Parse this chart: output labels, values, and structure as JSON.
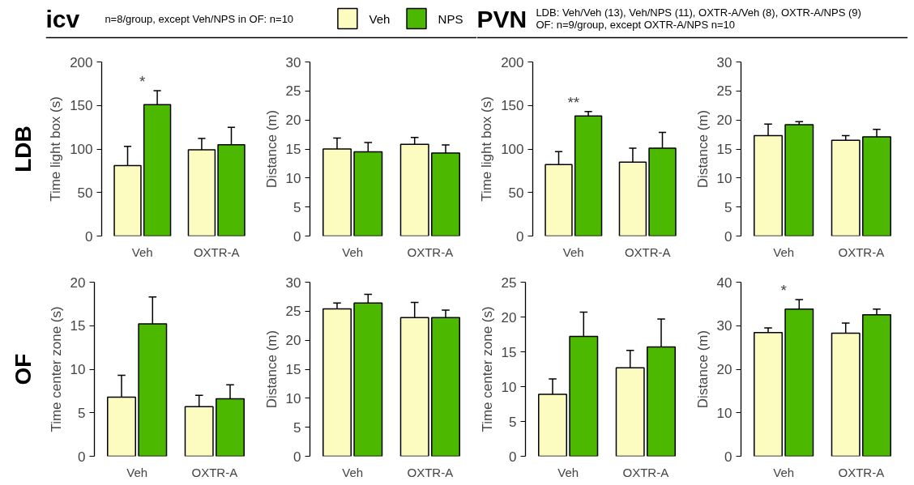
{
  "chart_data": [
    {
      "type": "other",
      "title": "LDB"
    },
    {
      "type": "bar",
      "title": "icv",
      "subtitle": "n=8/group, except Veh/NPS in OF: n=10",
      "annotations": [
        "*"
      ],
      "ylabel": "Time light box (s)",
      "categories": [
        "Veh",
        "OXTR-A"
      ],
      "ylim": [
        0,
        200
      ],
      "yticks": [
        0,
        50,
        100,
        150,
        200
      ],
      "legend": "top",
      "grid": false,
      "series": [
        {
          "name": "Veh",
          "color": "#fdfcc0",
          "values": [
            81,
            99
          ],
          "errors": [
            22,
            13
          ]
        },
        {
          "name": "NPS",
          "color": "#4db800",
          "values": [
            151,
            105
          ],
          "errors": [
            16,
            20
          ]
        }
      ]
    },
    {
      "type": "bar",
      "ylabel": "Distance (m)",
      "categories": [
        "Veh",
        "OXTR-A"
      ],
      "ylim": [
        0,
        30
      ],
      "yticks": [
        0,
        5,
        10,
        15,
        20,
        25,
        30
      ],
      "series": [
        {
          "color": "#fdfcc0",
          "values": [
            15.0,
            15.8
          ],
          "errors": [
            1.9,
            1.2
          ]
        },
        {
          "color": "#4db800",
          "values": [
            14.5,
            14.3
          ],
          "errors": [
            1.6,
            1.4
          ]
        }
      ]
    },
    {
      "type": "bar",
      "title": "PVN",
      "subtitle": "LDB: Veh/Veh (13), Veh/NPS (11), OXTR-A/Veh (8), OXTR-A/NPS (9)\nOF: n=9/group, except OXTR-A/NPS n=10",
      "annotations": [
        "**"
      ],
      "ylabel": "Time light box (s)",
      "categories": [
        "Veh",
        "OXTR-A"
      ],
      "ylim": [
        0,
        200
      ],
      "yticks": [
        0,
        50,
        100,
        150,
        200
      ],
      "series": [
        {
          "color": "#fdfcc0",
          "values": [
            82,
            85
          ],
          "errors": [
            15,
            16
          ]
        },
        {
          "color": "#4db800",
          "values": [
            138,
            101
          ],
          "errors": [
            5,
            18
          ]
        }
      ]
    },
    {
      "type": "bar",
      "ylabel": "Distance (m)",
      "categories": [
        "Veh",
        "OXTR-A"
      ],
      "ylim": [
        0,
        30
      ],
      "yticks": [
        0,
        5,
        10,
        15,
        20,
        25,
        30
      ],
      "series": [
        {
          "color": "#fdfcc0",
          "values": [
            17.3,
            16.5
          ],
          "errors": [
            2.0,
            0.8
          ]
        },
        {
          "color": "#4db800",
          "values": [
            19.2,
            17.1
          ],
          "errors": [
            0.5,
            1.3
          ]
        }
      ]
    },
    {
      "type": "other",
      "title": "OF"
    },
    {
      "type": "bar",
      "ylabel": "Time center zone (s)",
      "categories": [
        "Veh",
        "OXTR-A"
      ],
      "ylim": [
        0,
        20
      ],
      "yticks": [
        0,
        5,
        10,
        15,
        20
      ],
      "series": [
        {
          "color": "#fdfcc0",
          "values": [
            6.8,
            5.7
          ],
          "errors": [
            2.5,
            1.3
          ]
        },
        {
          "color": "#4db800",
          "values": [
            15.2,
            6.6
          ],
          "errors": [
            3.1,
            1.6
          ]
        }
      ]
    },
    {
      "type": "bar",
      "ylabel": "Distance (m)",
      "categories": [
        "Veh",
        "OXTR-A"
      ],
      "ylim": [
        0,
        30
      ],
      "yticks": [
        0,
        5,
        10,
        15,
        20,
        25,
        30
      ],
      "series": [
        {
          "color": "#fdfcc0",
          "values": [
            25.4,
            23.9
          ],
          "errors": [
            1.0,
            2.6
          ]
        },
        {
          "color": "#4db800",
          "values": [
            26.4,
            23.9
          ],
          "errors": [
            1.5,
            1.3
          ]
        }
      ]
    },
    {
      "type": "bar",
      "ylabel": "Time center zone (s)",
      "categories": [
        "Veh",
        "OXTR-A"
      ],
      "ylim": [
        0,
        25
      ],
      "yticks": [
        0,
        5,
        10,
        15,
        20,
        25
      ],
      "series": [
        {
          "color": "#fdfcc0",
          "values": [
            8.9,
            12.7
          ],
          "errors": [
            2.2,
            2.5
          ]
        },
        {
          "color": "#4db800",
          "values": [
            17.2,
            15.7
          ],
          "errors": [
            3.5,
            4.0
          ]
        }
      ]
    },
    {
      "type": "bar",
      "annotations": [
        "*"
      ],
      "ylabel": "Distance (m)",
      "categories": [
        "Veh",
        "OXTR-A"
      ],
      "ylim": [
        0,
        40
      ],
      "yticks": [
        0,
        10,
        20,
        30,
        40
      ],
      "series": [
        {
          "color": "#fdfcc0",
          "values": [
            28.4,
            28.3
          ],
          "errors": [
            1.1,
            2.3
          ]
        },
        {
          "color": "#4db800",
          "values": [
            33.8,
            32.5
          ],
          "errors": [
            2.2,
            1.3
          ]
        }
      ]
    }
  ]
}
